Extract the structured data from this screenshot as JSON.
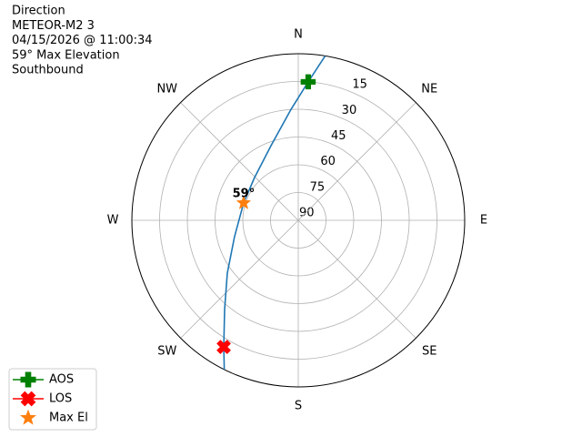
{
  "chart_data": {
    "type": "polar",
    "title": [
      "Direction",
      "METEOR-M2 3",
      "04/15/2026 @ 11:00:34",
      "59° Max Elevation",
      "Southbound"
    ],
    "theta_zero": "N",
    "theta_direction": "clockwise",
    "thetaticks": [
      {
        "value": 0,
        "label": "N"
      },
      {
        "value": 45,
        "label": "NE"
      },
      {
        "value": 90,
        "label": "E"
      },
      {
        "value": 135,
        "label": "SE"
      },
      {
        "value": 180,
        "label": "S"
      },
      {
        "value": 225,
        "label": "SW"
      },
      {
        "value": 270,
        "label": "W"
      },
      {
        "value": 315,
        "label": "NW"
      }
    ],
    "rlim": [
      90,
      0
    ],
    "rticks": [
      90,
      75,
      60,
      45,
      30,
      15
    ],
    "grid": true,
    "legend": "lower left",
    "series": [
      {
        "color": "#1f77b4",
        "marker": "none",
        "theta": [
          9.3,
          4.1,
          356.2,
          340,
          314,
          287.6,
          255.6,
          233.4,
          219.6,
          210.5,
          206.4
        ],
        "values": [
          0,
          15,
          30,
          47,
          57,
          59,
          54.4,
          42.2,
          27.5,
          10.6,
          0
        ]
      },
      {
        "name": "AOS",
        "color": "green",
        "marker": "plus",
        "theta": [
          4.1
        ],
        "values": [
          15
        ]
      },
      {
        "name": "LOS",
        "color": "red",
        "marker": "x",
        "theta": [
          210.5
        ],
        "values": [
          10.6
        ]
      },
      {
        "name": "Max El",
        "color": "#ff7f0e",
        "marker": "star",
        "theta": [
          287.6
        ],
        "values": [
          59
        ]
      }
    ],
    "annotations": [
      "59°"
    ]
  }
}
